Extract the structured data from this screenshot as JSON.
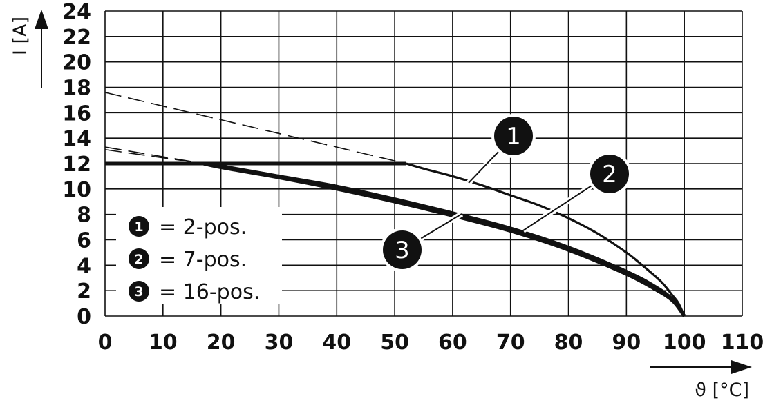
{
  "chart_data": {
    "type": "line",
    "title": "",
    "xlabel": "ϑ [°C]",
    "ylabel": "I [A]",
    "xlim": [
      0,
      110
    ],
    "ylim": [
      0,
      24
    ],
    "x_ticks": [
      "0",
      "10",
      "20",
      "30",
      "40",
      "50",
      "60",
      "70",
      "80",
      "90",
      "100",
      "110"
    ],
    "y_ticks": [
      "0",
      "2",
      "4",
      "6",
      "8",
      "10",
      "12",
      "14",
      "16",
      "18",
      "20",
      "22",
      "24"
    ],
    "grid": true,
    "series": [
      {
        "name": "1",
        "label": "= 2-pos.",
        "x": [
          0,
          52,
          55,
          60,
          65,
          70,
          75,
          80,
          85,
          90,
          93,
          96,
          98,
          99,
          100
        ],
        "y": [
          12,
          12,
          11.6,
          11,
          10.3,
          9.5,
          8.7,
          7.7,
          6.5,
          5,
          3.9,
          2.7,
          1.6,
          1,
          0
        ],
        "dashed_extrapolation": {
          "x": [
            0,
            52
          ],
          "y": [
            17.6,
            12
          ]
        },
        "callout": "1"
      },
      {
        "name": "2",
        "label": "= 7-pos.",
        "x": [
          0,
          17,
          20,
          30,
          40,
          50,
          60,
          70,
          80,
          90,
          95,
          98,
          100
        ],
        "y": [
          12,
          12,
          11.8,
          11,
          10.2,
          9.2,
          8.1,
          6.9,
          5.4,
          3.5,
          2.3,
          1.3,
          0
        ],
        "dashed_extrapolation": {
          "x": [
            0,
            17
          ],
          "y": [
            13.3,
            12
          ]
        },
        "callout": "2"
      },
      {
        "name": "3",
        "label": "= 16-pos.",
        "x": [
          0,
          17,
          20,
          30,
          40,
          50,
          60,
          70,
          80,
          90,
          95,
          98,
          100
        ],
        "y": [
          12,
          12,
          11.7,
          10.9,
          10.0,
          9.0,
          7.9,
          6.7,
          5.2,
          3.3,
          2.1,
          1.2,
          0
        ],
        "dashed_extrapolation": {
          "x": [
            0,
            17
          ],
          "y": [
            13.1,
            12
          ]
        },
        "callout": "3"
      }
    ],
    "legend": {
      "placement": "bottom-left",
      "entries": [
        {
          "marker": "1",
          "text": "= 2-pos."
        },
        {
          "marker": "2",
          "text": "= 7-pos."
        },
        {
          "marker": "3",
          "text": "= 16-pos."
        }
      ]
    },
    "line_color": "#111111",
    "grid_color": "#111111"
  }
}
